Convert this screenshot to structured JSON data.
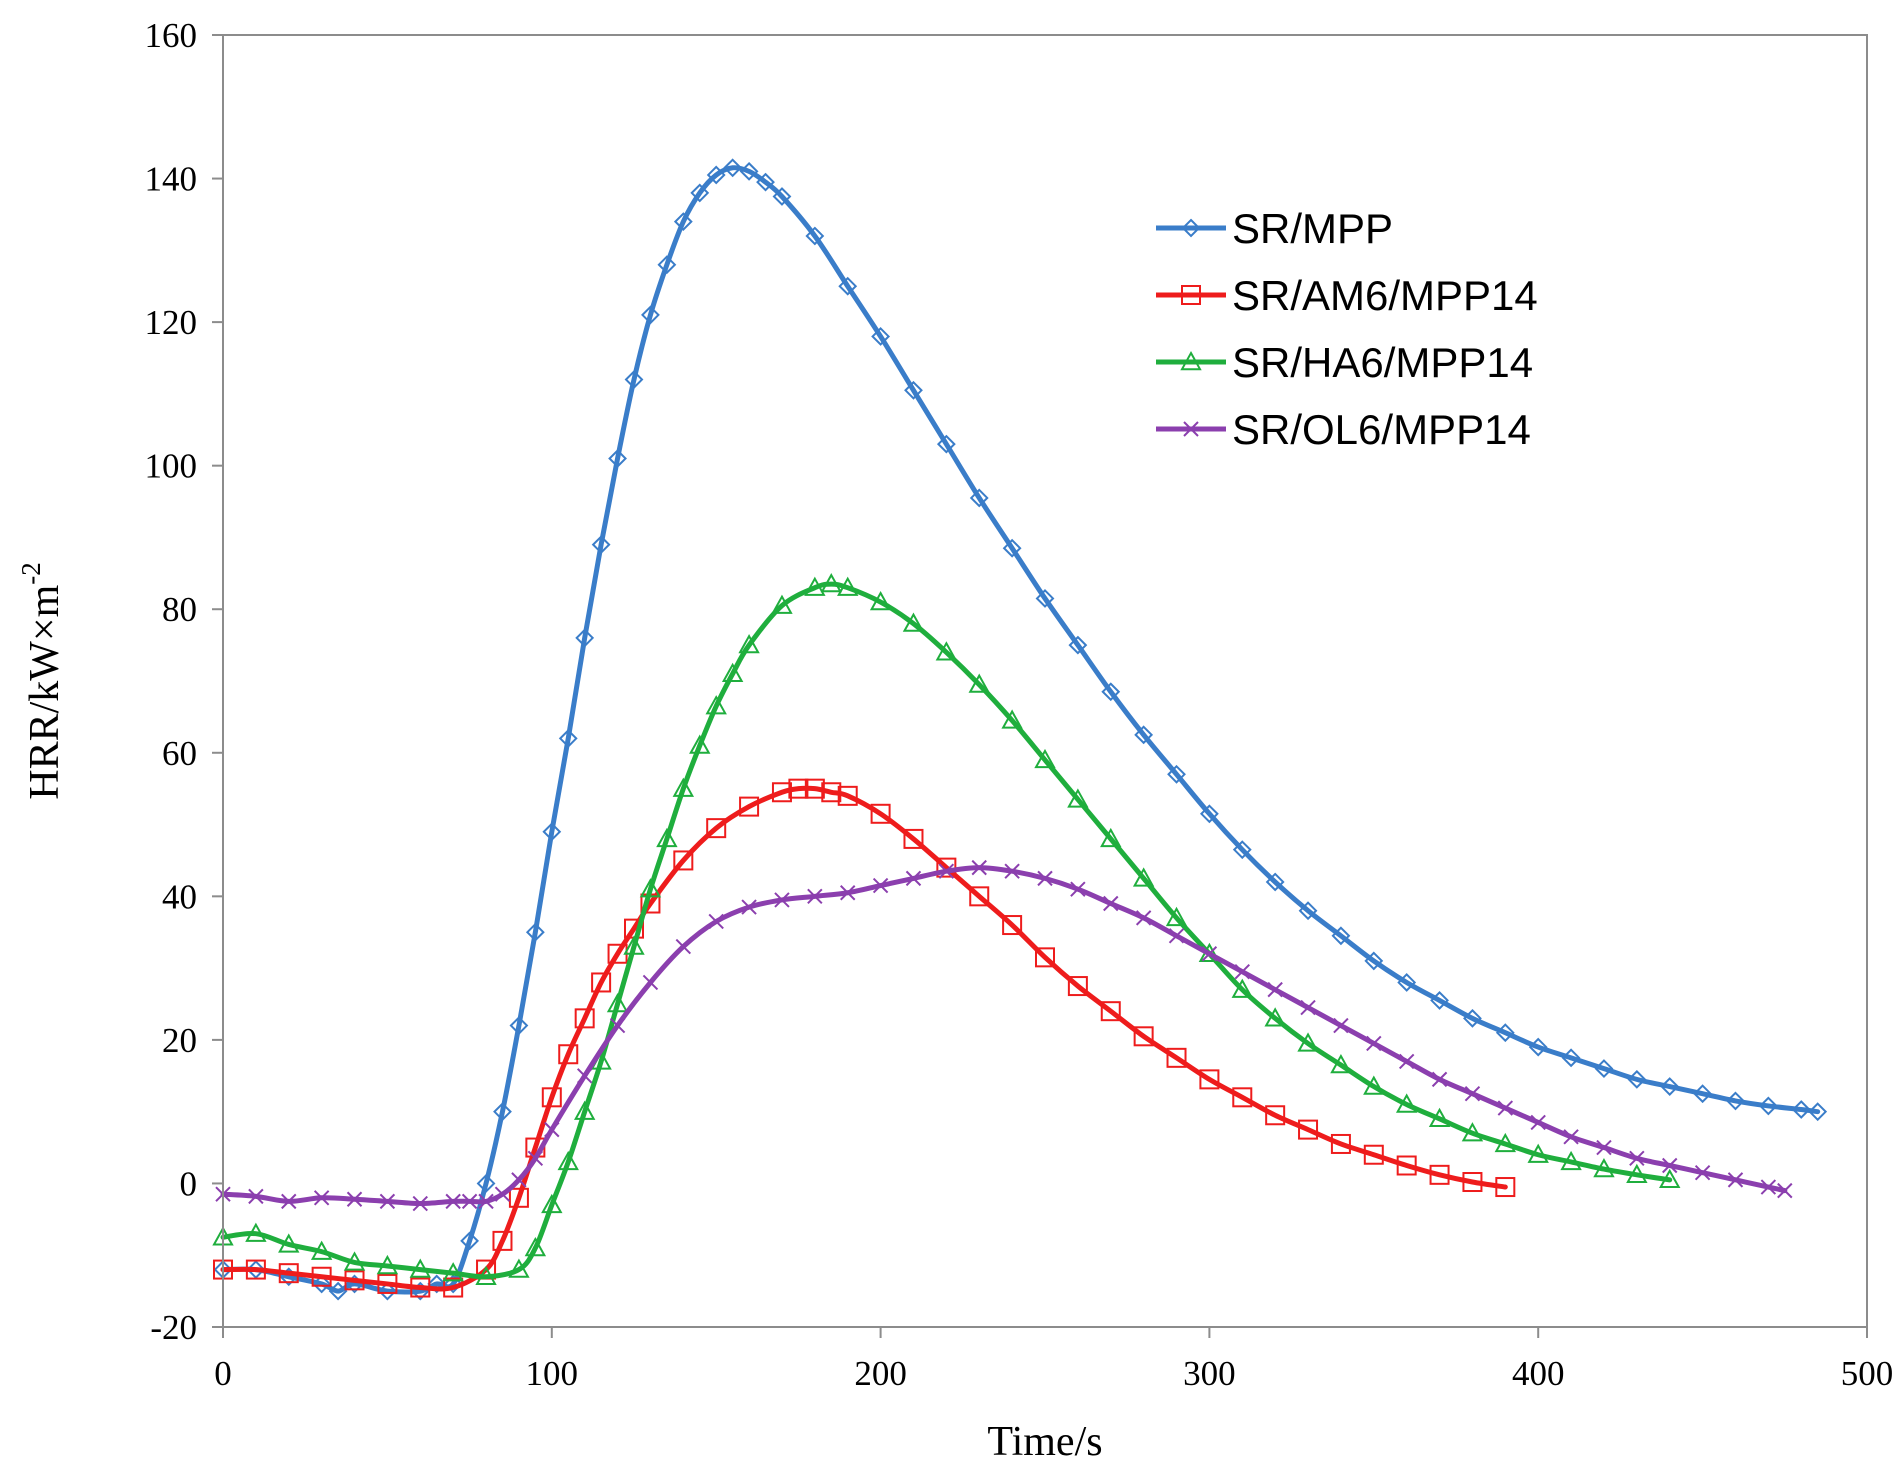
{
  "chart_data": {
    "type": "line",
    "title": "",
    "xlabel": "Time/s",
    "ylabel_base": "HRR/kW×m",
    "ylabel_sup": "-2",
    "xlim": [
      0,
      500
    ],
    "ylim": [
      -20,
      160
    ],
    "xticks": [
      0,
      100,
      200,
      300,
      400,
      500
    ],
    "yticks": [
      -20,
      0,
      20,
      40,
      60,
      80,
      100,
      120,
      140,
      160
    ],
    "x_tick_labels": [
      "0",
      "100",
      "200",
      "300",
      "400",
      "500"
    ],
    "y_tick_labels": [
      "-20",
      "0",
      "20",
      "40",
      "60",
      "80",
      "100",
      "120",
      "140",
      "160"
    ],
    "grid": false,
    "legend_position": "top-right",
    "series": [
      {
        "name": "SR/MPP",
        "color": "#3a7dc9",
        "marker": "diamond",
        "x": [
          0,
          10,
          20,
          30,
          35,
          40,
          50,
          60,
          65,
          70,
          75,
          80,
          85,
          90,
          95,
          100,
          105,
          110,
          115,
          120,
          125,
          130,
          135,
          140,
          145,
          150,
          155,
          160,
          165,
          170,
          180,
          190,
          200,
          210,
          220,
          230,
          240,
          250,
          260,
          270,
          280,
          290,
          300,
          310,
          320,
          330,
          340,
          350,
          360,
          370,
          380,
          390,
          400,
          410,
          420,
          430,
          440,
          450,
          460,
          470,
          480,
          485
        ],
        "y": [
          -12,
          -12,
          -13,
          -14,
          -15,
          -14,
          -15,
          -15,
          -14,
          -14,
          -8,
          0,
          10,
          22,
          35,
          49,
          62,
          76,
          89,
          101,
          112,
          121,
          128,
          134,
          138,
          140.5,
          141.5,
          141,
          139.5,
          137.5,
          132,
          125,
          118,
          110.5,
          103,
          95.5,
          88.5,
          81.5,
          75,
          68.5,
          62.5,
          57,
          51.5,
          46.5,
          42,
          38,
          34.5,
          31,
          28,
          25.5,
          23,
          21,
          19,
          17.5,
          16,
          14.5,
          13.5,
          12.5,
          11.5,
          10.8,
          10.3,
          10
        ]
      },
      {
        "name": "SR/AM6/MPP14",
        "color": "#ee1c1c",
        "marker": "square",
        "x": [
          0,
          10,
          20,
          30,
          40,
          50,
          60,
          70,
          80,
          85,
          90,
          95,
          100,
          105,
          110,
          115,
          120,
          125,
          130,
          140,
          150,
          160,
          170,
          175,
          180,
          185,
          190,
          200,
          210,
          220,
          230,
          240,
          250,
          260,
          270,
          280,
          290,
          300,
          310,
          320,
          330,
          340,
          350,
          360,
          370,
          380,
          390
        ],
        "y": [
          -12,
          -12,
          -12.5,
          -13,
          -13.5,
          -14,
          -14.5,
          -14.5,
          -12,
          -8,
          -2,
          5,
          12,
          18,
          23,
          28,
          32,
          35.5,
          39,
          45,
          49.5,
          52.5,
          54.5,
          55,
          55,
          54.5,
          54,
          51.5,
          48,
          44,
          40,
          36,
          31.5,
          27.5,
          24,
          20.5,
          17.5,
          14.5,
          12,
          9.5,
          7.5,
          5.5,
          4,
          2.5,
          1.2,
          0.2,
          -0.5
        ]
      },
      {
        "name": "SR/HA6/MPP14",
        "color": "#1fae3d",
        "marker": "triangle",
        "x": [
          0,
          10,
          20,
          30,
          40,
          50,
          60,
          70,
          80,
          90,
          95,
          100,
          105,
          110,
          115,
          120,
          125,
          130,
          135,
          140,
          145,
          150,
          155,
          160,
          170,
          180,
          185,
          190,
          200,
          210,
          220,
          230,
          240,
          250,
          260,
          270,
          280,
          290,
          300,
          310,
          320,
          330,
          340,
          350,
          360,
          370,
          380,
          390,
          400,
          410,
          420,
          430,
          440
        ],
        "y": [
          -7.5,
          -7,
          -8.5,
          -9.5,
          -11,
          -11.5,
          -12,
          -12.5,
          -13,
          -12,
          -9,
          -3,
          3,
          10,
          17,
          25,
          33,
          41,
          48,
          55,
          61,
          66.5,
          71,
          75,
          80.5,
          83,
          83.5,
          83,
          81,
          78,
          74,
          69.5,
          64.5,
          59,
          53.5,
          48,
          42.5,
          37,
          32,
          27,
          23,
          19.5,
          16.5,
          13.5,
          11,
          9,
          7,
          5.5,
          4,
          3,
          2,
          1.2,
          0.5
        ]
      },
      {
        "name": "SR/OL6/MPP14",
        "color": "#8b3fae",
        "marker": "x",
        "x": [
          0,
          10,
          20,
          30,
          40,
          50,
          60,
          70,
          75,
          80,
          85,
          90,
          95,
          100,
          110,
          120,
          130,
          140,
          150,
          160,
          170,
          180,
          190,
          200,
          210,
          220,
          230,
          240,
          250,
          260,
          270,
          280,
          290,
          300,
          310,
          320,
          330,
          340,
          350,
          360,
          370,
          380,
          390,
          400,
          410,
          420,
          430,
          440,
          450,
          460,
          470,
          475
        ],
        "y": [
          -1.5,
          -1.8,
          -2.5,
          -2,
          -2.2,
          -2.5,
          -2.8,
          -2.5,
          -2.5,
          -2.5,
          -1.5,
          0.5,
          3.5,
          7.5,
          15,
          22,
          28,
          33,
          36.5,
          38.5,
          39.5,
          40,
          40.5,
          41.5,
          42.5,
          43.5,
          44,
          43.5,
          42.5,
          41,
          39,
          37,
          34.5,
          32,
          29.5,
          27,
          24.5,
          22,
          19.5,
          17,
          14.5,
          12.5,
          10.5,
          8.5,
          6.5,
          5,
          3.5,
          2.5,
          1.5,
          0.5,
          -0.5,
          -1
        ]
      }
    ]
  }
}
